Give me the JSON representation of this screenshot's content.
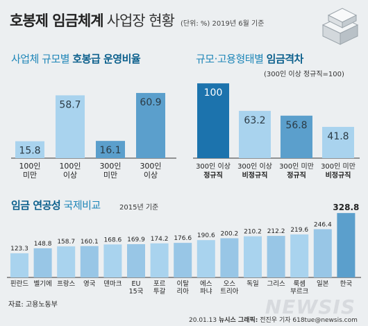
{
  "header": {
    "title_bold": "호봉제 임금체계",
    "title_light": "사업장 현황",
    "unit_note": "(단위: %) 2019년 6월 기준"
  },
  "panel1": {
    "title_light": "사업체 규모별",
    "title_bold": "호봉급 운영비율"
  },
  "panel2": {
    "title_light": "규모·고용형태별",
    "title_bold": "임금격차",
    "note": "(300인 이상 정규직=100)"
  },
  "panel3": {
    "title_bold": "임금 연공성",
    "title_light": "국제비교",
    "note": "2015년 기준"
  },
  "chart_data": [
    {
      "type": "bar",
      "categories": [
        "100인\n미만",
        "100인\n이상",
        "300인\n미만",
        "300인\n이상"
      ],
      "values": [
        15.8,
        58.7,
        16.1,
        60.9
      ],
      "value_labels": [
        "15.8",
        "58.7",
        "16.1",
        "60.9"
      ],
      "ylim": [
        0,
        70
      ]
    },
    {
      "type": "bar",
      "categories": [
        "300인 이상\n정규직",
        "300인 이상\n비정규직",
        "300인 미만\n정규직",
        "300인 미만\n비정규직"
      ],
      "values": [
        100,
        63.2,
        56.8,
        41.8
      ],
      "value_labels": [
        "100",
        "63.2",
        "56.8",
        "41.8"
      ],
      "ylim": [
        0,
        115
      ]
    },
    {
      "type": "bar",
      "categories": [
        "핀란드",
        "벨기에",
        "프랑스",
        "영국",
        "덴마크",
        "EU\n15국",
        "포르\n투갈",
        "이탈\n리아",
        "에스\n파냐",
        "오스\n트리아",
        "독일",
        "그리스",
        "룩셈\n부르크",
        "일본",
        "한국"
      ],
      "values": [
        123.3,
        148.8,
        158.7,
        160.1,
        168.6,
        169.9,
        174.2,
        176.6,
        190.6,
        200.2,
        210.2,
        212.2,
        219.6,
        246.4,
        328.8
      ],
      "value_labels": [
        "123.3",
        "148.8",
        "158.7",
        "160.1",
        "168.6",
        "169.9",
        "174.2",
        "176.6",
        "190.6",
        "200.2",
        "210.2",
        "212.2",
        "219.6",
        "246.4",
        "328.8"
      ],
      "ylim": [
        0,
        340
      ]
    }
  ],
  "footer": {
    "source": "자료: 고용노동부",
    "credit_date": "20.01.13",
    "credit_org": "뉴시스 그래픽:",
    "credit_author": "전진우 기자 618tue@newsis.com",
    "brand": "NEWSIS"
  },
  "colors": {
    "bar_light": "#a9d3ee",
    "bar_dark": "#5b9fcc",
    "bar_highlight": "#1c73ad",
    "bar_gray": "#9aa6ae",
    "bar_gray_light": "#bcc6cd",
    "label_on_bar": "#ffffff",
    "label_dark": "#2b3a44",
    "title_accent": "#1e86b8"
  }
}
